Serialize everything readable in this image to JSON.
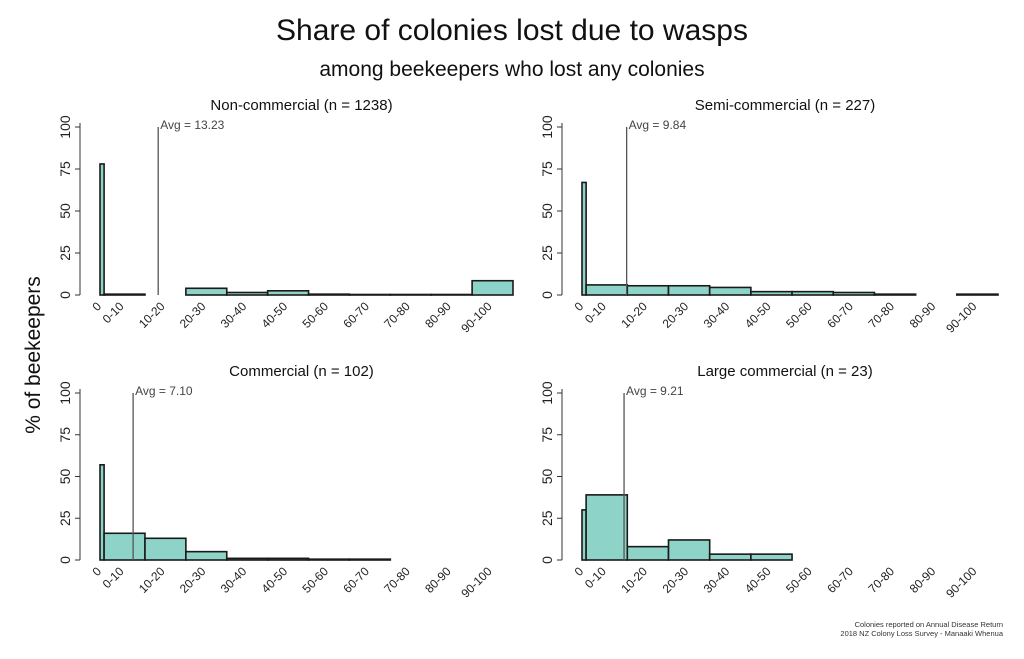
{
  "title": "Share of colonies lost due to wasps",
  "subtitle": "among beekeepers who lost any colonies",
  "ylabel": "% of beekeepers",
  "source_line1": "Colonies reported on Annual Disease Return",
  "source_line2": "2018 NZ Colony Loss Survey - Manaaki Whenua",
  "colors": {
    "bar_fill": "#8dd3c7",
    "bar_stroke": "#1a1a1a",
    "avg_line": "#555555"
  },
  "chart_data": [
    {
      "type": "bar",
      "title": "Non-commercial (n = 1238)",
      "categories": [
        "0",
        "0-10",
        "10-20",
        "20-30",
        "30-40",
        "40-50",
        "50-60",
        "60-70",
        "70-80",
        "80-90",
        "90-100"
      ],
      "values": [
        78,
        0.5,
        0,
        4,
        1.5,
        2.5,
        0.5,
        0.3,
        0.3,
        0.3,
        8.5
      ],
      "avg_value": 13.23,
      "avg_label": "Avg = 13.23",
      "yticks": [
        0,
        25,
        50,
        75,
        100
      ],
      "ylim": [
        0,
        100
      ]
    },
    {
      "type": "bar",
      "title": "Semi-commercial (n = 227)",
      "categories": [
        "0",
        "0-10",
        "10-20",
        "20-30",
        "30-40",
        "40-50",
        "50-60",
        "60-70",
        "70-80",
        "80-90",
        "90-100"
      ],
      "values": [
        67,
        6,
        5.5,
        5.5,
        4.5,
        2,
        2,
        1.5,
        0.5,
        0,
        0.5
      ],
      "avg_value": 9.84,
      "avg_label": "Avg = 9.84",
      "yticks": [
        0,
        25,
        50,
        75,
        100
      ],
      "ylim": [
        0,
        100
      ]
    },
    {
      "type": "bar",
      "title": "Commercial (n = 102)",
      "categories": [
        "0",
        "0-10",
        "10-20",
        "20-30",
        "30-40",
        "40-50",
        "50-60",
        "60-70",
        "70-80",
        "80-90",
        "90-100"
      ],
      "values": [
        57,
        16,
        13,
        5,
        1,
        1,
        0.5,
        0.5,
        0,
        0,
        0
      ],
      "avg_value": 7.1,
      "avg_label": "Avg = 7.10",
      "yticks": [
        0,
        25,
        50,
        75,
        100
      ],
      "ylim": [
        0,
        100
      ]
    },
    {
      "type": "bar",
      "title": "Large commercial (n = 23)",
      "categories": [
        "0",
        "0-10",
        "10-20",
        "20-30",
        "30-40",
        "40-50",
        "50-60",
        "60-70",
        "70-80",
        "80-90",
        "90-100"
      ],
      "values": [
        30,
        39,
        8,
        12,
        3.5,
        3.5,
        0,
        0,
        0,
        0,
        0
      ],
      "avg_value": 9.21,
      "avg_label": "Avg = 9.21",
      "yticks": [
        0,
        25,
        50,
        75,
        100
      ],
      "ylim": [
        0,
        100
      ]
    }
  ]
}
